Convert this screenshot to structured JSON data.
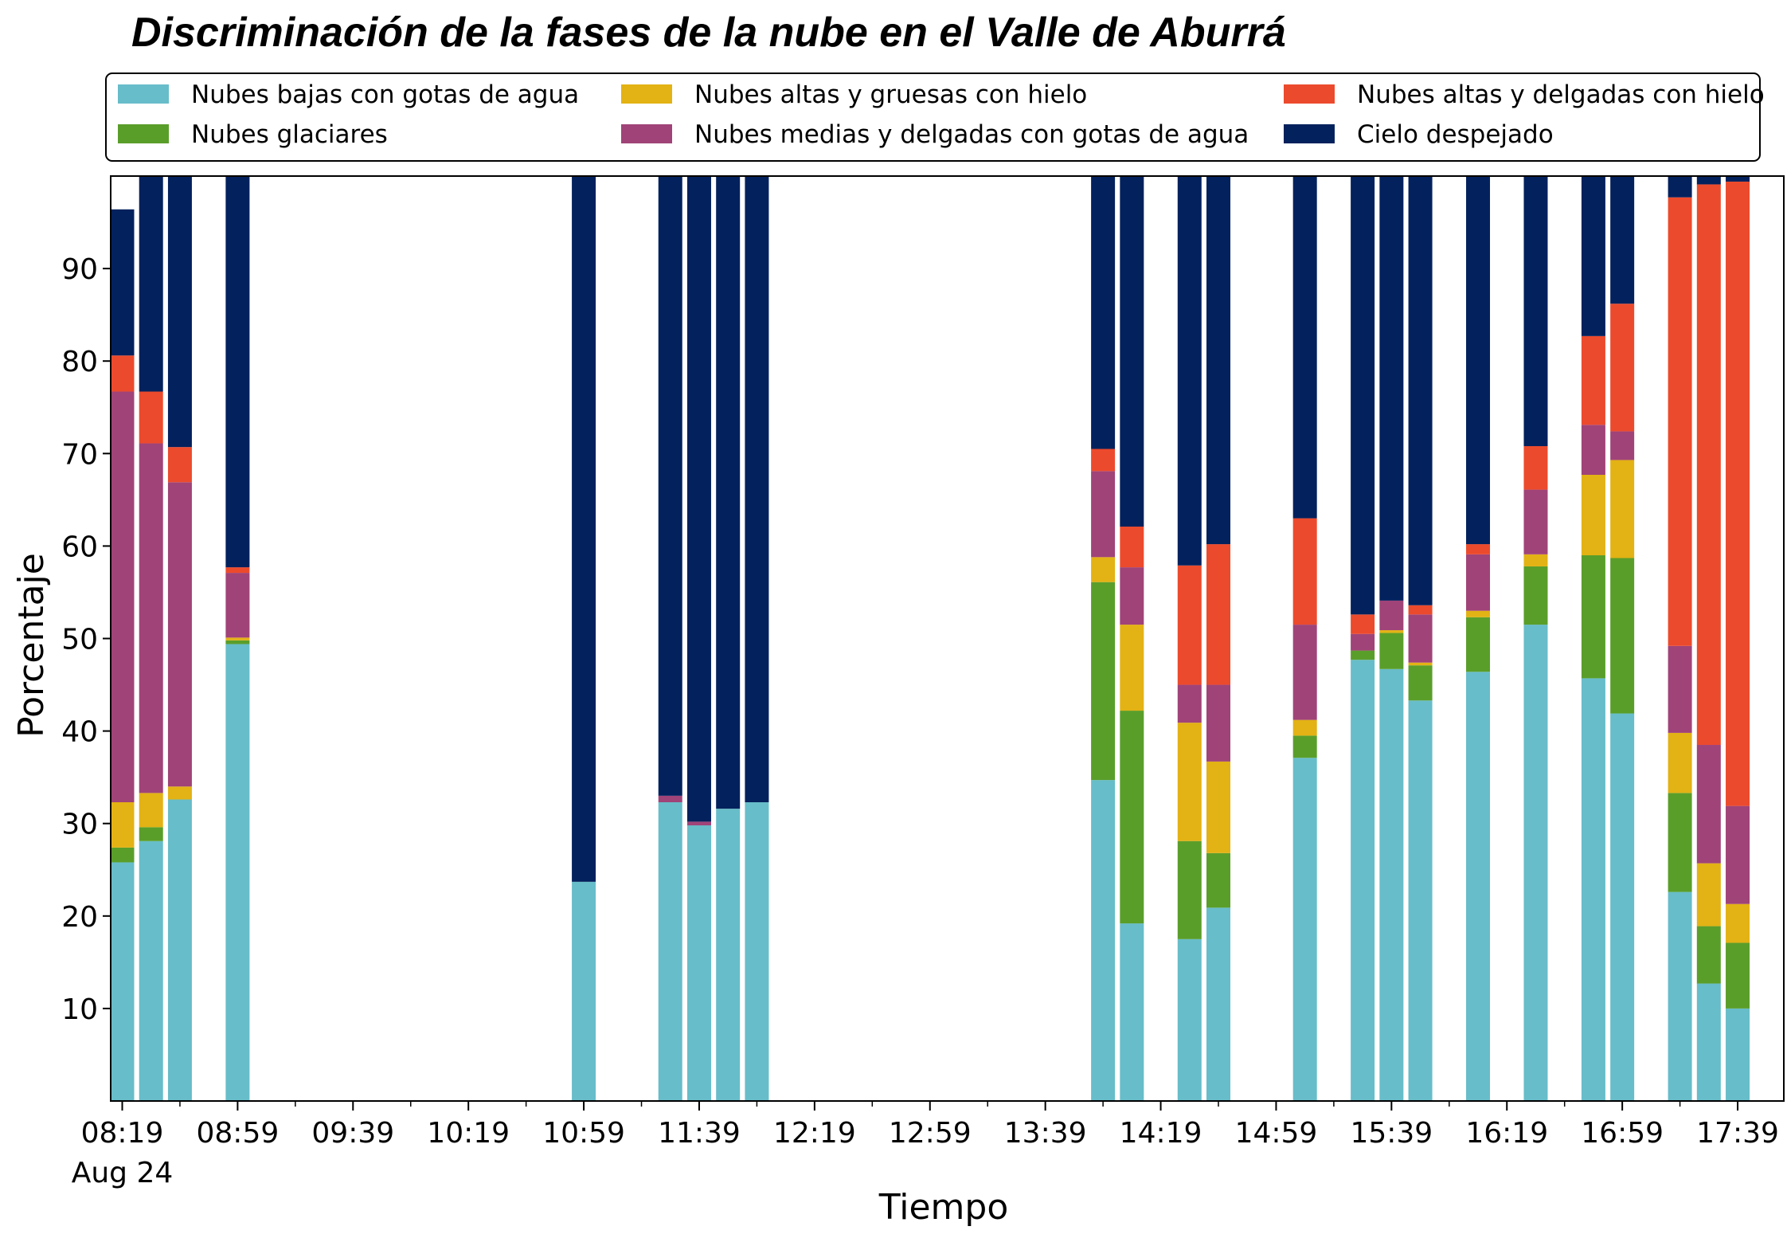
{
  "chart_data": {
    "type": "bar",
    "stacked": true,
    "title": "Discriminación de la fases de la nube en el Valle de Aburrá",
    "xlabel": "Tiempo",
    "ylabel": "Porcentaje",
    "ylim": [
      0,
      100
    ],
    "yticks": [
      10,
      20,
      30,
      40,
      50,
      60,
      70,
      80,
      90
    ],
    "xlim_minutes": [
      495,
      1075
    ],
    "xticks": [
      {
        "label": "08:19",
        "sub": "Aug 24"
      },
      {
        "label": "08:59"
      },
      {
        "label": "09:39"
      },
      {
        "label": "10:19"
      },
      {
        "label": "10:59"
      },
      {
        "label": "11:39"
      },
      {
        "label": "12:19"
      },
      {
        "label": "12:59"
      },
      {
        "label": "13:39"
      },
      {
        "label": "14:19"
      },
      {
        "label": "14:59"
      },
      {
        "label": "15:39"
      },
      {
        "label": "16:19"
      },
      {
        "label": "16:59"
      },
      {
        "label": "17:39"
      }
    ],
    "legend_position": "top",
    "grid": false,
    "categories": [
      "08:19",
      "08:29",
      "08:39",
      "08:59",
      "10:59",
      "11:29",
      "11:39",
      "11:49",
      "11:59",
      "13:59",
      "14:09",
      "14:29",
      "14:39",
      "15:09",
      "15:29",
      "15:39",
      "15:49",
      "16:09",
      "16:29",
      "16:49",
      "16:59",
      "17:19",
      "17:29",
      "17:39"
    ],
    "times": [
      "08:19",
      "08:29",
      "08:39",
      "08:59",
      "10:59",
      "11:29",
      "11:39",
      "11:49",
      "11:59",
      "13:59",
      "14:09",
      "14:29",
      "14:39",
      "15:09",
      "15:29",
      "15:39",
      "15:49",
      "16:09",
      "16:29",
      "16:49",
      "16:59",
      "17:19",
      "17:29",
      "17:39"
    ],
    "series": [
      {
        "name": "Nubes bajas con gotas de agua",
        "color": "#67bdc9",
        "values": [
          25.8,
          28.1,
          32.6,
          49.4,
          23.7,
          32.3,
          29.8,
          31.6,
          32.3,
          34.7,
          19.2,
          17.5,
          20.9,
          37.1,
          47.7,
          46.7,
          43.3,
          46.4,
          51.5,
          45.7,
          41.9,
          22.6,
          12.7,
          10.0
        ]
      },
      {
        "name": "Nubes glaciares",
        "color": "#5a9e2a",
        "values": [
          1.6,
          1.5,
          0,
          0.4,
          0,
          0,
          0,
          0,
          0,
          21.4,
          23.0,
          10.6,
          5.9,
          2.4,
          1.0,
          3.9,
          3.8,
          5.9,
          6.3,
          13.3,
          16.8,
          10.7,
          6.2,
          7.1
        ]
      },
      {
        "name": "Nubes altas y gruesas con hielo",
        "color": "#e3b214",
        "values": [
          4.9,
          3.7,
          1.4,
          0.3,
          0,
          0,
          0,
          0,
          0,
          2.7,
          9.3,
          12.8,
          9.9,
          1.7,
          0,
          0.3,
          0.3,
          0.7,
          1.3,
          8.7,
          10.6,
          6.5,
          6.8,
          4.2
        ]
      },
      {
        "name": "Nubes medias y delgadas con gotas de agua",
        "color": "#a04378",
        "values": [
          44.4,
          37.8,
          32.9,
          7.0,
          0,
          0.7,
          0.4,
          0,
          0,
          9.3,
          6.2,
          4.1,
          8.3,
          10.3,
          1.8,
          3.2,
          5.2,
          6.1,
          7.0,
          5.4,
          3.1,
          9.4,
          12.8,
          10.6
        ]
      },
      {
        "name": "Nubes altas y delgadas con hielo",
        "color": "#ec4a2c",
        "values": [
          3.9,
          5.6,
          3.8,
          0.6,
          0,
          0,
          0,
          0,
          0,
          2.4,
          4.4,
          12.9,
          15.2,
          11.5,
          2.1,
          0,
          1.0,
          1.1,
          4.7,
          9.6,
          13.8,
          48.5,
          60.6,
          67.5
        ]
      },
      {
        "name": "Cielo despejado",
        "color": "#03215d",
        "values": [
          15.8,
          23.3,
          29.3,
          42.3,
          76.3,
          67.0,
          69.8,
          68.4,
          67.7,
          29.5,
          37.9,
          42.1,
          39.8,
          37.0,
          47.4,
          45.9,
          46.4,
          39.8,
          29.2,
          17.3,
          13.8,
          2.3,
          0.9,
          0.6
        ]
      }
    ]
  }
}
